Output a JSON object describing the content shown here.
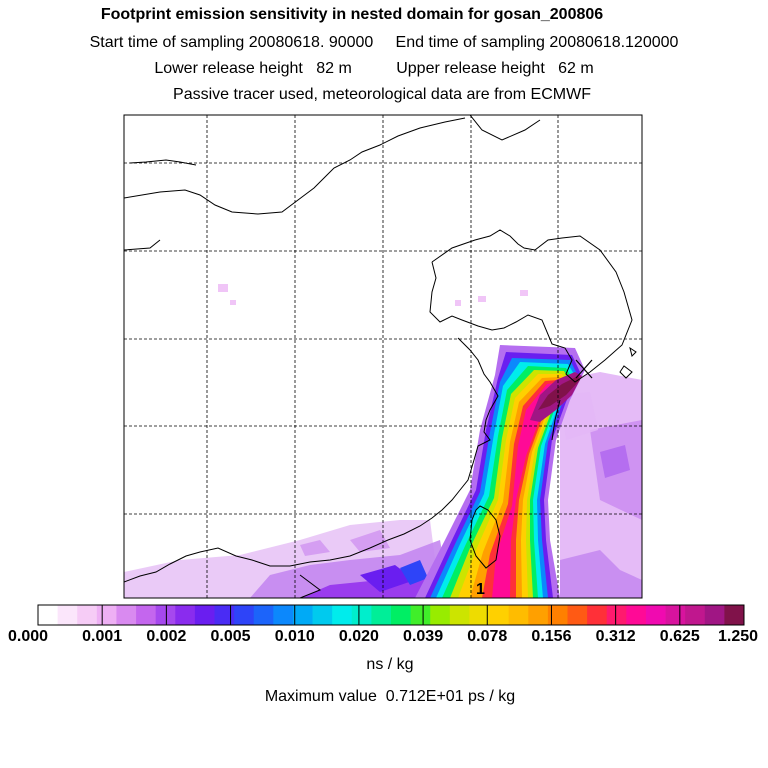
{
  "header": {
    "title": "Footprint emission sensitivity in nested domain for gosan_200806",
    "sampling_line": "Start time of sampling 20080618. 90000     End time of sampling 20080618.120000",
    "release_line": "Lower release height   82 m          Upper release height   62 m",
    "tracer_line": "Passive tracer used, meteorological data are from ECMWF"
  },
  "map": {
    "release_marker": "1"
  },
  "colorbar": {
    "labels": [
      "0.000",
      "0.001",
      "0.002",
      "0.005",
      "0.010",
      "0.020",
      "0.039",
      "0.078",
      "0.156",
      "0.312",
      "0.625",
      "1.250"
    ],
    "colors": [
      "#ffffff",
      "#fbe6fb",
      "#f6ccf6",
      "#eeb0f4",
      "#d98af0",
      "#c466ee",
      "#a648ee",
      "#8a2cee",
      "#6a1ef0",
      "#4a2cf4",
      "#2e44f8",
      "#1c64fa",
      "#0c88fc",
      "#00aaf6",
      "#00caee",
      "#00ecec",
      "#00eecc",
      "#00ee98",
      "#00ee64",
      "#40ee2a",
      "#98ec00",
      "#cce400",
      "#eedc00",
      "#ffd000",
      "#ffbc00",
      "#ffa000",
      "#ff8000",
      "#ff5a14",
      "#ff3038",
      "#ff1a6e",
      "#ff0a96",
      "#f00ab0",
      "#d8139e",
      "#c0178e",
      "#a01684",
      "#80124a"
    ],
    "unit": "ns / kg"
  },
  "footer": {
    "max_value_text": "Maximum value  0.712E+01 ps / kg"
  },
  "icons": [
    "release-point-icon"
  ]
}
